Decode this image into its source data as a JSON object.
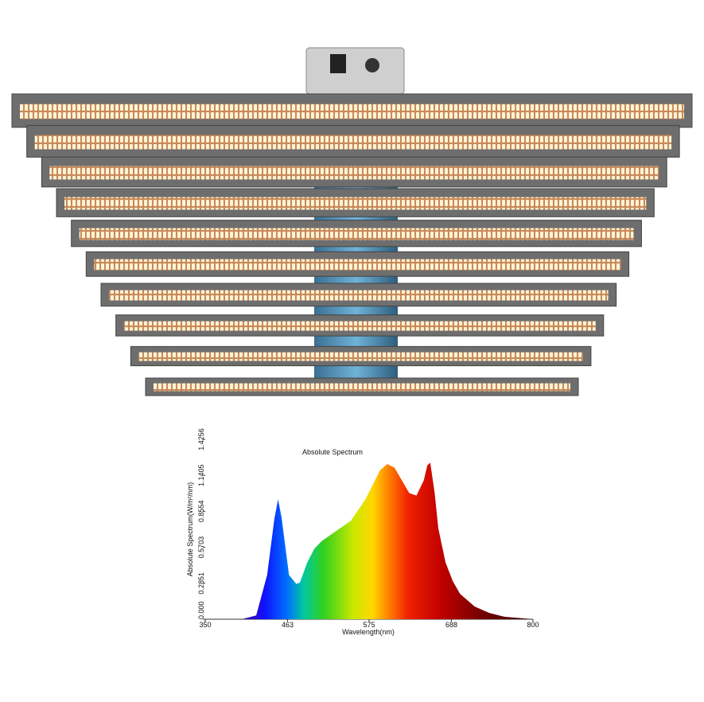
{
  "chart_data": {
    "type": "area",
    "title": "Absolute Spectrum",
    "x_label": "Wavelength(nm)",
    "y_label": "Absolute Spectrum(W/m²/nm)",
    "x": [
      400,
      420,
      435,
      445,
      450,
      455,
      465,
      475,
      480,
      490,
      500,
      510,
      530,
      550,
      570,
      590,
      600,
      610,
      620,
      630,
      640,
      650,
      655,
      659,
      665,
      670,
      680,
      690,
      700,
      720,
      740,
      760,
      780,
      800
    ],
    "values": [
      0,
      0.03,
      0.35,
      0.8,
      0.95,
      0.8,
      0.35,
      0.28,
      0.29,
      0.45,
      0.56,
      0.62,
      0.7,
      0.78,
      0.95,
      1.18,
      1.23,
      1.2,
      1.1,
      1.0,
      0.98,
      1.1,
      1.22,
      1.24,
      1.0,
      0.72,
      0.45,
      0.3,
      0.2,
      0.1,
      0.05,
      0.02,
      0.01,
      0
    ],
    "xlim": [
      350,
      800
    ],
    "xticks": [
      350,
      463,
      575,
      688,
      800
    ],
    "ylim": [
      0,
      1.4256
    ],
    "yticks": [
      {
        "value": 0,
        "label": "0.000"
      },
      0.2851,
      0.5703,
      0.8554,
      1.1405,
      1.4256
    ]
  }
}
